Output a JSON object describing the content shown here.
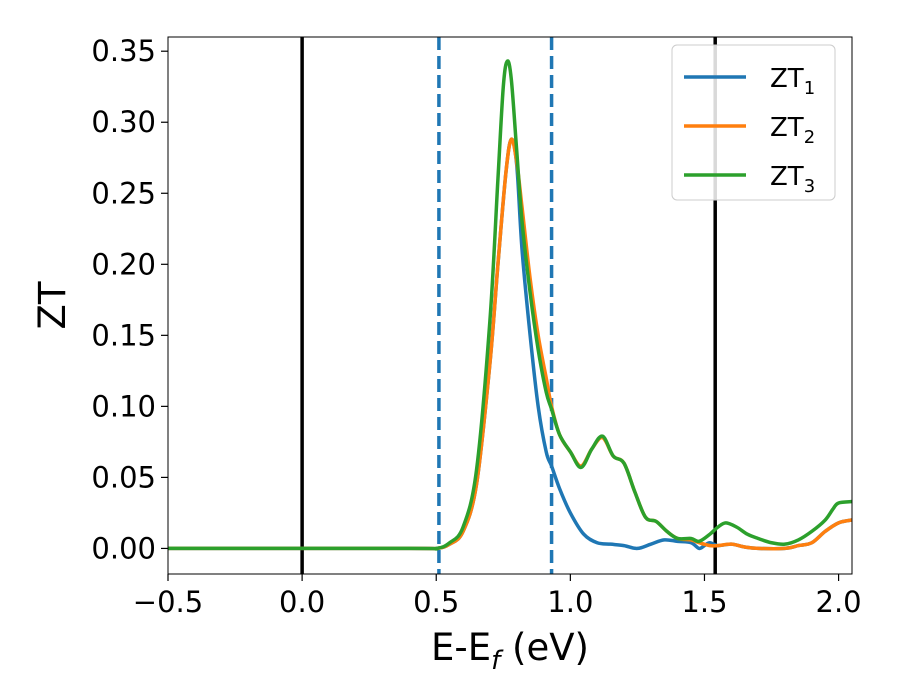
{
  "chart_data": {
    "type": "line",
    "title": "",
    "xlabel": {
      "base": "E-E",
      "subscript": "f",
      "suffix": " (eV)"
    },
    "ylabel": "ZT",
    "xlim": [
      -0.5,
      2.05
    ],
    "ylim": [
      -0.018,
      0.36
    ],
    "xticks": [
      -0.5,
      0.0,
      0.5,
      1.0,
      1.5,
      2.0
    ],
    "xtick_labels": [
      "−0.5",
      "0.0",
      "0.5",
      "1.0",
      "1.5",
      "2.0"
    ],
    "yticks": [
      0.0,
      0.05,
      0.1,
      0.15,
      0.2,
      0.25,
      0.3,
      0.35
    ],
    "ytick_labels": [
      "0.00",
      "0.05",
      "0.10",
      "0.15",
      "0.20",
      "0.25",
      "0.30",
      "0.35"
    ],
    "grid": false,
    "legend_position": "top-right",
    "vertical_lines": [
      {
        "x": 0.0,
        "style": "solid",
        "color": "#000000"
      },
      {
        "x": 0.51,
        "style": "dashed",
        "color": "#1f77b4"
      },
      {
        "x": 0.93,
        "style": "dashed",
        "color": "#1f77b4"
      },
      {
        "x": 1.54,
        "style": "solid",
        "color": "#000000"
      }
    ],
    "series": [
      {
        "name": "ZT",
        "subscript": "1",
        "color": "#1f77b4",
        "points": [
          [
            -0.5,
            0.0
          ],
          [
            0.4,
            0.0
          ],
          [
            0.5,
            0.0
          ],
          [
            0.55,
            0.003
          ],
          [
            0.6,
            0.012
          ],
          [
            0.65,
            0.045
          ],
          [
            0.7,
            0.13
          ],
          [
            0.73,
            0.2
          ],
          [
            0.76,
            0.265
          ],
          [
            0.78,
            0.288
          ],
          [
            0.8,
            0.27
          ],
          [
            0.82,
            0.21
          ],
          [
            0.85,
            0.15
          ],
          [
            0.88,
            0.1
          ],
          [
            0.91,
            0.068
          ],
          [
            0.93,
            0.058
          ],
          [
            0.96,
            0.042
          ],
          [
            1.0,
            0.025
          ],
          [
            1.05,
            0.01
          ],
          [
            1.1,
            0.004
          ],
          [
            1.15,
            0.003
          ],
          [
            1.2,
            0.002
          ],
          [
            1.25,
            0.0
          ],
          [
            1.3,
            0.003
          ],
          [
            1.35,
            0.006
          ],
          [
            1.4,
            0.005
          ],
          [
            1.45,
            0.004
          ],
          [
            1.48,
            0.0
          ],
          [
            1.5,
            0.002
          ],
          [
            1.52,
            0.004
          ],
          [
            1.55,
            0.002
          ],
          [
            1.6,
            0.003
          ],
          [
            1.65,
            0.001
          ],
          [
            1.7,
            0.0
          ],
          [
            1.8,
            0.0
          ],
          [
            1.85,
            0.002
          ],
          [
            1.9,
            0.004
          ],
          [
            1.95,
            0.012
          ],
          [
            2.0,
            0.018
          ],
          [
            2.05,
            0.02
          ]
        ]
      },
      {
        "name": "ZT",
        "subscript": "2",
        "color": "#ff7f0e",
        "points": [
          [
            -0.5,
            0.0
          ],
          [
            0.4,
            0.0
          ],
          [
            0.5,
            0.0
          ],
          [
            0.55,
            0.003
          ],
          [
            0.6,
            0.012
          ],
          [
            0.65,
            0.045
          ],
          [
            0.7,
            0.13
          ],
          [
            0.73,
            0.2
          ],
          [
            0.76,
            0.265
          ],
          [
            0.78,
            0.288
          ],
          [
            0.8,
            0.272
          ],
          [
            0.82,
            0.24
          ],
          [
            0.85,
            0.19
          ],
          [
            0.88,
            0.15
          ],
          [
            0.91,
            0.12
          ],
          [
            0.93,
            0.1
          ],
          [
            0.96,
            0.08
          ],
          [
            1.0,
            0.068
          ],
          [
            1.04,
            0.058
          ],
          [
            1.08,
            0.07
          ],
          [
            1.12,
            0.078
          ],
          [
            1.16,
            0.065
          ],
          [
            1.2,
            0.06
          ],
          [
            1.24,
            0.04
          ],
          [
            1.28,
            0.022
          ],
          [
            1.32,
            0.019
          ],
          [
            1.36,
            0.012
          ],
          [
            1.4,
            0.007
          ],
          [
            1.45,
            0.006
          ],
          [
            1.48,
            0.004
          ],
          [
            1.52,
            0.002
          ],
          [
            1.55,
            0.002
          ],
          [
            1.6,
            0.003
          ],
          [
            1.65,
            0.001
          ],
          [
            1.7,
            0.0
          ],
          [
            1.8,
            0.0
          ],
          [
            1.85,
            0.002
          ],
          [
            1.9,
            0.004
          ],
          [
            1.95,
            0.012
          ],
          [
            2.0,
            0.018
          ],
          [
            2.05,
            0.02
          ]
        ]
      },
      {
        "name": "ZT",
        "subscript": "3",
        "color": "#2ca02c",
        "points": [
          [
            -0.5,
            0.0
          ],
          [
            0.4,
            0.0
          ],
          [
            0.5,
            0.0
          ],
          [
            0.55,
            0.004
          ],
          [
            0.6,
            0.015
          ],
          [
            0.65,
            0.055
          ],
          [
            0.7,
            0.16
          ],
          [
            0.73,
            0.26
          ],
          [
            0.75,
            0.325
          ],
          [
            0.765,
            0.343
          ],
          [
            0.78,
            0.33
          ],
          [
            0.8,
            0.28
          ],
          [
            0.82,
            0.23
          ],
          [
            0.85,
            0.18
          ],
          [
            0.88,
            0.14
          ],
          [
            0.91,
            0.11
          ],
          [
            0.93,
            0.098
          ],
          [
            0.96,
            0.08
          ],
          [
            1.0,
            0.068
          ],
          [
            1.04,
            0.057
          ],
          [
            1.08,
            0.07
          ],
          [
            1.12,
            0.079
          ],
          [
            1.16,
            0.065
          ],
          [
            1.2,
            0.06
          ],
          [
            1.24,
            0.04
          ],
          [
            1.28,
            0.022
          ],
          [
            1.32,
            0.019
          ],
          [
            1.36,
            0.012
          ],
          [
            1.4,
            0.007
          ],
          [
            1.45,
            0.007
          ],
          [
            1.48,
            0.005
          ],
          [
            1.52,
            0.01
          ],
          [
            1.55,
            0.015
          ],
          [
            1.58,
            0.018
          ],
          [
            1.62,
            0.015
          ],
          [
            1.66,
            0.01
          ],
          [
            1.7,
            0.007
          ],
          [
            1.75,
            0.004
          ],
          [
            1.8,
            0.003
          ],
          [
            1.85,
            0.006
          ],
          [
            1.9,
            0.012
          ],
          [
            1.95,
            0.02
          ],
          [
            1.98,
            0.028
          ],
          [
            2.0,
            0.032
          ],
          [
            2.05,
            0.033
          ]
        ]
      }
    ]
  }
}
